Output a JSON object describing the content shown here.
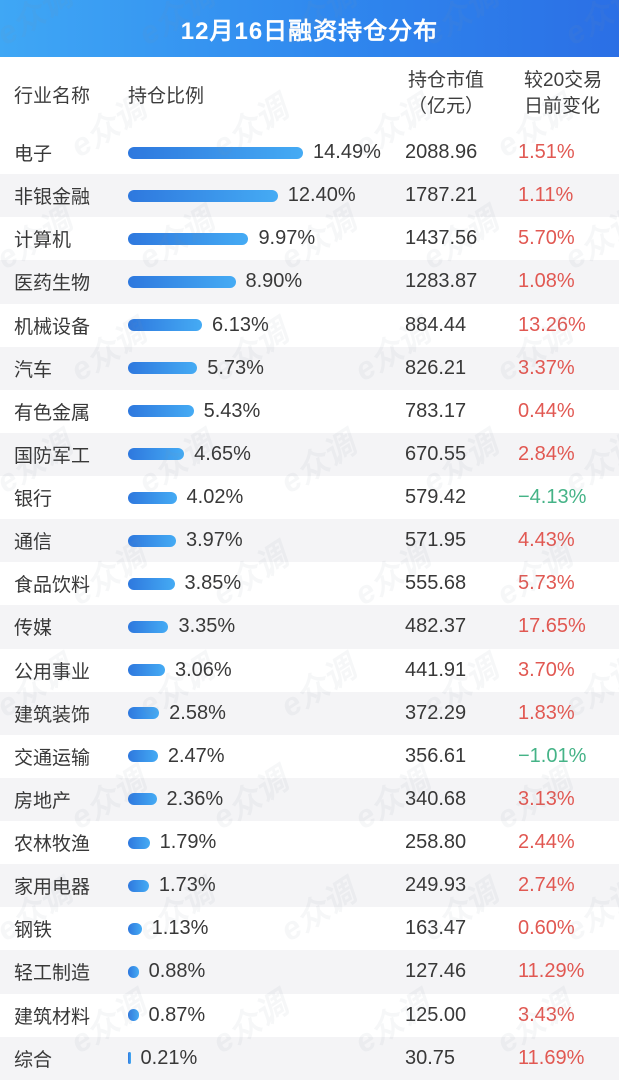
{
  "title": "12月16日融资持仓分布",
  "watermark": {
    "text": "e众调"
  },
  "columns": {
    "industry": "行业名称",
    "ratio": "持仓比例",
    "value_line1": "持仓市值",
    "value_line2": "（亿元）",
    "change_line1": "较20交易",
    "change_line2": "日前变化"
  },
  "colors": {
    "banner_gradient_start": "#3fa7f5",
    "banner_gradient_end": "#2b6fe5",
    "bar_gradient_start": "#2e78de",
    "bar_gradient_end": "#45abf4",
    "positive_change": "#e15852",
    "negative_change": "#45b387",
    "alt_row_bg": "#f4f4f6",
    "text": "#383838"
  },
  "chart_data": {
    "type": "bar",
    "orientation": "horizontal",
    "title": "12月16日融资持仓分布",
    "xlabel": "持仓比例(%)",
    "xlim": [
      0,
      15
    ],
    "legend_position": "none",
    "grid": false,
    "categories": [
      "电子",
      "非银金融",
      "计算机",
      "医药生物",
      "机械设备",
      "汽车",
      "有色金属",
      "国防军工",
      "银行",
      "通信",
      "食品饮料",
      "传媒",
      "公用事业",
      "建筑装饰",
      "交通运输",
      "房地产",
      "农林牧渔",
      "家用电器",
      "钢铁",
      "轻工制造",
      "建筑材料",
      "综合"
    ],
    "series": [
      {
        "name": "持仓比例(%)",
        "values": [
          14.49,
          12.4,
          9.97,
          8.9,
          6.13,
          5.73,
          5.43,
          4.65,
          4.02,
          3.97,
          3.85,
          3.35,
          3.06,
          2.58,
          2.47,
          2.36,
          1.79,
          1.73,
          1.13,
          0.88,
          0.87,
          0.21
        ]
      },
      {
        "name": "持仓市值(亿元)",
        "values": [
          2088.96,
          1787.21,
          1437.56,
          1283.87,
          884.44,
          826.21,
          783.17,
          670.55,
          579.42,
          571.95,
          555.68,
          482.37,
          441.91,
          372.29,
          356.61,
          340.68,
          258.8,
          249.93,
          163.47,
          127.46,
          125.0,
          30.75
        ]
      },
      {
        "name": "较20交易日前变化(%)",
        "values": [
          1.51,
          1.11,
          5.7,
          1.08,
          13.26,
          3.37,
          0.44,
          2.84,
          -4.13,
          4.43,
          5.73,
          17.65,
          3.7,
          1.83,
          -1.01,
          3.13,
          2.44,
          2.74,
          0.6,
          11.29,
          3.43,
          11.69
        ]
      }
    ]
  },
  "rows": [
    {
      "industry": "电子",
      "ratio": "14.49%",
      "ratio_pct": 14.49,
      "value": "2088.96",
      "change": "1.51%",
      "change_dir": "up"
    },
    {
      "industry": "非银金融",
      "ratio": "12.40%",
      "ratio_pct": 12.4,
      "value": "1787.21",
      "change": "1.11%",
      "change_dir": "up"
    },
    {
      "industry": "计算机",
      "ratio": "9.97%",
      "ratio_pct": 9.97,
      "value": "1437.56",
      "change": "5.70%",
      "change_dir": "up"
    },
    {
      "industry": "医药生物",
      "ratio": "8.90%",
      "ratio_pct": 8.9,
      "value": "1283.87",
      "change": "1.08%",
      "change_dir": "up"
    },
    {
      "industry": "机械设备",
      "ratio": "6.13%",
      "ratio_pct": 6.13,
      "value": "884.44",
      "change": "13.26%",
      "change_dir": "up"
    },
    {
      "industry": "汽车",
      "ratio": "5.73%",
      "ratio_pct": 5.73,
      "value": "826.21",
      "change": "3.37%",
      "change_dir": "up"
    },
    {
      "industry": "有色金属",
      "ratio": "5.43%",
      "ratio_pct": 5.43,
      "value": "783.17",
      "change": "0.44%",
      "change_dir": "up"
    },
    {
      "industry": "国防军工",
      "ratio": "4.65%",
      "ratio_pct": 4.65,
      "value": "670.55",
      "change": "2.84%",
      "change_dir": "up"
    },
    {
      "industry": "银行",
      "ratio": "4.02%",
      "ratio_pct": 4.02,
      "value": "579.42",
      "change": "−4.13%",
      "change_dir": "down"
    },
    {
      "industry": "通信",
      "ratio": "3.97%",
      "ratio_pct": 3.97,
      "value": "571.95",
      "change": "4.43%",
      "change_dir": "up"
    },
    {
      "industry": "食品饮料",
      "ratio": "3.85%",
      "ratio_pct": 3.85,
      "value": "555.68",
      "change": "5.73%",
      "change_dir": "up"
    },
    {
      "industry": "传媒",
      "ratio": "3.35%",
      "ratio_pct": 3.35,
      "value": "482.37",
      "change": "17.65%",
      "change_dir": "up"
    },
    {
      "industry": "公用事业",
      "ratio": "3.06%",
      "ratio_pct": 3.06,
      "value": "441.91",
      "change": "3.70%",
      "change_dir": "up"
    },
    {
      "industry": "建筑装饰",
      "ratio": "2.58%",
      "ratio_pct": 2.58,
      "value": "372.29",
      "change": "1.83%",
      "change_dir": "up"
    },
    {
      "industry": "交通运输",
      "ratio": "2.47%",
      "ratio_pct": 2.47,
      "value": "356.61",
      "change": "−1.01%",
      "change_dir": "down"
    },
    {
      "industry": "房地产",
      "ratio": "2.36%",
      "ratio_pct": 2.36,
      "value": "340.68",
      "change": "3.13%",
      "change_dir": "up"
    },
    {
      "industry": "农林牧渔",
      "ratio": "1.79%",
      "ratio_pct": 1.79,
      "value": "258.80",
      "change": "2.44%",
      "change_dir": "up"
    },
    {
      "industry": "家用电器",
      "ratio": "1.73%",
      "ratio_pct": 1.73,
      "value": "249.93",
      "change": "2.74%",
      "change_dir": "up"
    },
    {
      "industry": "钢铁",
      "ratio": "1.13%",
      "ratio_pct": 1.13,
      "value": "163.47",
      "change": "0.60%",
      "change_dir": "up"
    },
    {
      "industry": "轻工制造",
      "ratio": "0.88%",
      "ratio_pct": 0.88,
      "value": "127.46",
      "change": "11.29%",
      "change_dir": "up"
    },
    {
      "industry": "建筑材料",
      "ratio": "0.87%",
      "ratio_pct": 0.87,
      "value": "125.00",
      "change": "3.43%",
      "change_dir": "up"
    },
    {
      "industry": "综合",
      "ratio": "0.21%",
      "ratio_pct": 0.21,
      "value": "30.75",
      "change": "11.69%",
      "change_dir": "up"
    }
  ]
}
